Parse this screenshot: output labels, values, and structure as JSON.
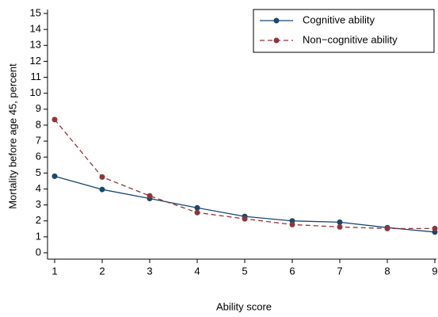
{
  "chart_data": {
    "type": "line",
    "x_label": "Ability score",
    "y_label": "Mortality before age 45, percent",
    "x": [
      1,
      2,
      3,
      4,
      5,
      6,
      7,
      8,
      9
    ],
    "series": [
      {
        "name": "Cognitive ability",
        "color": "#1a476f",
        "dash": false,
        "values": [
          4.8,
          3.97,
          3.4,
          2.82,
          2.28,
          2.0,
          1.92,
          1.58,
          1.3
        ]
      },
      {
        "name": "Non−cognitive ability",
        "color": "#90353b",
        "dash": true,
        "values": [
          8.35,
          4.75,
          3.57,
          2.52,
          2.13,
          1.77,
          1.62,
          1.52,
          1.52
        ]
      }
    ],
    "xlim": [
      1,
      9
    ],
    "xticks": [
      1,
      2,
      3,
      4,
      5,
      6,
      7,
      8,
      9
    ],
    "ylim": [
      0,
      15
    ],
    "yticks": [
      0,
      1,
      2,
      3,
      4,
      5,
      6,
      7,
      8,
      9,
      10,
      11,
      12,
      13,
      14,
      15
    ],
    "legend": "upper right"
  }
}
